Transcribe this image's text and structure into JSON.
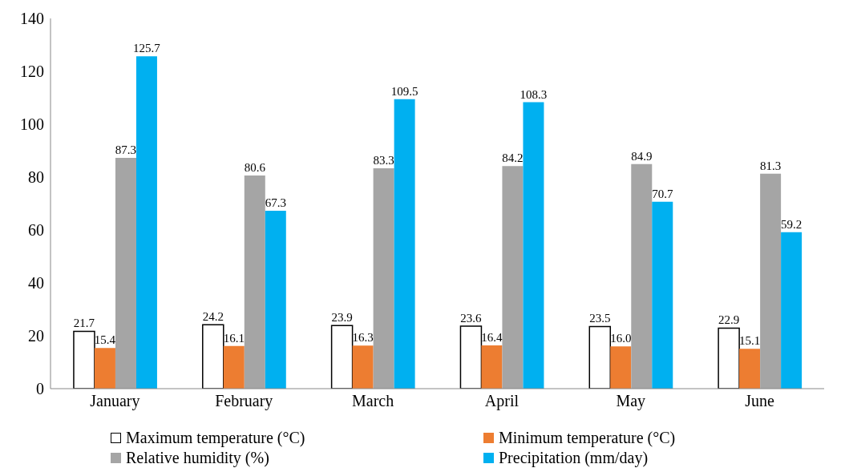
{
  "chart_data": {
    "type": "bar",
    "categories": [
      "January",
      "February",
      "March",
      "April",
      "May",
      "June"
    ],
    "series": [
      {
        "name": "Maximum temperature (°C)",
        "color": "#ffffff",
        "values": [
          21.7,
          24.2,
          23.9,
          23.6,
          23.5,
          22.9
        ],
        "value_labels": [
          "21.7",
          "24.2",
          "23.9",
          "23.6",
          "23.5",
          "22.9"
        ]
      },
      {
        "name": "Minimum temperature (°C)",
        "color": "#ed7d31",
        "values": [
          15.4,
          16.1,
          16.3,
          16.4,
          16.0,
          15.1
        ],
        "value_labels": [
          "15.4",
          "16.1",
          "16.3",
          "16.4",
          "16.0",
          "15.1"
        ]
      },
      {
        "name": "Relative humidity (%)",
        "color": "#a5a5a5",
        "values": [
          87.3,
          80.6,
          83.3,
          84.2,
          84.9,
          81.3
        ],
        "value_labels": [
          "87.3",
          "80.6",
          "83.3",
          "84.2",
          "84.9",
          "81.3"
        ]
      },
      {
        "name": "Precipitation (mm/day)",
        "color": "#00b0f0",
        "values": [
          125.7,
          67.3,
          109.5,
          108.3,
          70.7,
          59.2
        ],
        "value_labels": [
          "125.7",
          "67.3",
          "109.5",
          "108.3",
          "70.7",
          "59.2"
        ]
      }
    ],
    "ylim": [
      0,
      140
    ],
    "yticks": [
      0,
      20,
      40,
      60,
      80,
      100,
      120,
      140
    ],
    "grid": false,
    "legend": "bottom"
  }
}
